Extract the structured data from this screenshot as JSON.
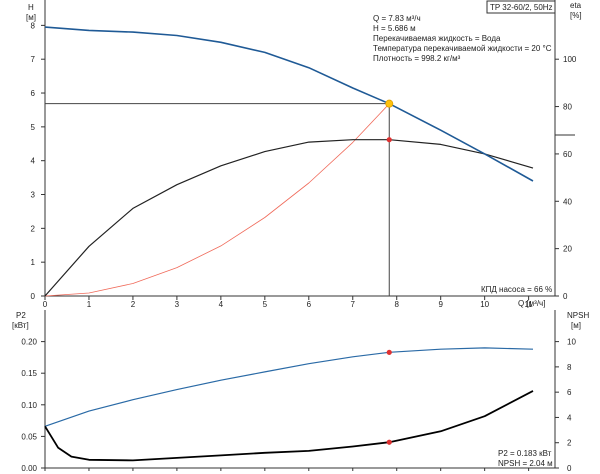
{
  "colors": {
    "head_curve": "#1f5a96",
    "eta_curve": "#222222",
    "system_curve": "#f06a5a",
    "p2_curve": "#2a6aa6",
    "npsh_curve": "#000000",
    "duty_marker": "#ffc20e",
    "point_marker": "#e03030",
    "duty_lines": "#444444"
  },
  "chart_data": [
    {
      "type": "line",
      "title": "TP 32-60/2, 50Hz",
      "xlabel": "Q [м³/ч]",
      "ylabel_left": [
        "H",
        "[м]"
      ],
      "ylabel_right": [
        "eta",
        "[%]"
      ],
      "xlim": [
        0,
        11.6
      ],
      "ylim": [
        0,
        8.75
      ],
      "y2lim": [
        0,
        125
      ],
      "xticks": [
        "0",
        "1",
        "2",
        "3",
        "4",
        "5",
        "6",
        "7",
        "8",
        "9",
        "10",
        "11"
      ],
      "yticks": [
        "0",
        "1",
        "2",
        "3",
        "4",
        "5",
        "6",
        "7",
        "8"
      ],
      "y2ticks": [
        "0",
        "20",
        "40",
        "60",
        "80",
        "100"
      ],
      "info_lines": [
        "Q = 7.83 м³/ч",
        "H = 5.686 м",
        "Перекачиваемая жидкость = Вода",
        "Температура перекачиваемой жидкости = 20 °C",
        "Плотность = 998.2 кг/м³"
      ],
      "annotation": "КПД насоса = 66 %",
      "duty_point": {
        "x": 7.83,
        "y": 5.686
      },
      "series": [
        {
          "key": "head",
          "x": [
            0,
            1,
            2,
            3,
            4,
            5,
            6,
            7,
            7.83,
            9,
            10,
            11.1
          ],
          "y": [
            7.95,
            7.85,
            7.8,
            7.7,
            7.5,
            7.2,
            6.75,
            6.15,
            5.686,
            4.9,
            4.2,
            3.4
          ]
        },
        {
          "key": "eta",
          "x": [
            0,
            1,
            2,
            3,
            4,
            5,
            6,
            7,
            7.83,
            9,
            10,
            11.1
          ],
          "y": [
            0,
            21,
            37,
            47,
            55,
            61,
            65,
            66,
            66,
            64,
            60,
            54
          ]
        },
        {
          "key": "system",
          "x": [
            0,
            1,
            2,
            3,
            4,
            5,
            6,
            7,
            7.83
          ],
          "y": [
            0,
            0.09,
            0.37,
            0.84,
            1.48,
            2.32,
            3.34,
            4.54,
            5.686
          ]
        }
      ],
      "eta_point": {
        "x": 7.83,
        "y": 66
      }
    },
    {
      "type": "line",
      "xlim": [
        0,
        11.6
      ],
      "ylim": [
        0,
        0.25
      ],
      "y2lim": [
        0,
        12.5
      ],
      "ylabel_left": [
        "P2",
        "[кВт]"
      ],
      "ylabel_right": [
        "NPSH",
        "[м]"
      ],
      "yticks": [
        "0.00",
        "0.05",
        "0.10",
        "0.15",
        "0.20"
      ],
      "y2ticks": [
        "0",
        "2",
        "4",
        "6",
        "8",
        "10"
      ],
      "readout": [
        "P2 = 0.183 кВт",
        "NPSH = 2.04 м"
      ],
      "series": [
        {
          "key": "p2",
          "x": [
            0,
            1,
            2,
            3,
            4,
            5,
            6,
            7,
            7.83,
            9,
            10,
            11.1
          ],
          "y": [
            0.066,
            0.09,
            0.108,
            0.124,
            0.139,
            0.152,
            0.165,
            0.176,
            0.183,
            0.188,
            0.19,
            0.188
          ]
        },
        {
          "key": "npsh",
          "x": [
            0,
            0.3,
            0.6,
            1,
            2,
            3,
            4,
            5,
            6,
            7,
            7.83,
            9,
            10,
            11.1
          ],
          "y": [
            3.3,
            1.6,
            0.9,
            0.65,
            0.6,
            0.8,
            1.0,
            1.2,
            1.35,
            1.7,
            2.04,
            2.9,
            4.1,
            6.1
          ]
        }
      ],
      "p2_point": {
        "x": 7.83,
        "y": 0.183
      },
      "npsh_point": {
        "x": 7.83,
        "y": 2.04
      }
    }
  ]
}
